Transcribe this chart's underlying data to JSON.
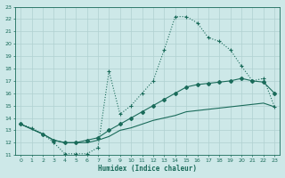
{
  "xlabel": "Humidex (Indice chaleur)",
  "bg_color": "#cde8e8",
  "grid_color": "#b0d0d0",
  "line_color": "#1a6b5a",
  "xlim": [
    -0.5,
    23.5
  ],
  "ylim": [
    11,
    23
  ],
  "xticks": [
    0,
    1,
    2,
    3,
    4,
    5,
    6,
    7,
    8,
    9,
    10,
    11,
    12,
    13,
    14,
    15,
    16,
    17,
    18,
    19,
    20,
    21,
    22,
    23
  ],
  "yticks": [
    11,
    12,
    13,
    14,
    15,
    16,
    17,
    18,
    19,
    20,
    21,
    22,
    23
  ],
  "curve1_x": [
    0,
    1,
    2,
    3,
    4,
    5,
    6,
    7,
    8,
    9,
    10,
    11,
    12,
    13,
    14,
    15,
    16,
    17,
    18,
    19,
    20,
    21,
    22,
    23
  ],
  "curve1_y": [
    13.5,
    13.2,
    12.7,
    12.0,
    11.1,
    11.1,
    11.1,
    11.6,
    17.8,
    14.3,
    15.0,
    16.0,
    17.0,
    19.5,
    22.2,
    22.2,
    21.7,
    20.5,
    20.2,
    19.5,
    18.2,
    17.0,
    17.2,
    14.9
  ],
  "curve2_x": [
    0,
    2,
    3,
    4,
    5,
    6,
    7,
    8,
    9,
    10,
    11,
    12,
    13,
    14,
    15,
    16,
    17,
    18,
    19,
    20,
    21,
    22,
    23
  ],
  "curve2_y": [
    13.5,
    12.7,
    12.2,
    12.0,
    12.0,
    12.2,
    12.4,
    13.0,
    13.5,
    14.0,
    14.5,
    15.0,
    15.5,
    16.0,
    16.5,
    16.7,
    16.8,
    16.9,
    17.0,
    17.2,
    17.0,
    16.9,
    16.0
  ],
  "curve3_x": [
    0,
    2,
    3,
    4,
    5,
    6,
    7,
    8,
    9,
    10,
    11,
    12,
    13,
    14,
    15,
    16,
    17,
    18,
    19,
    20,
    21,
    22,
    23
  ],
  "curve3_y": [
    13.5,
    12.7,
    12.2,
    12.0,
    12.0,
    12.0,
    12.2,
    12.5,
    13.0,
    13.2,
    13.5,
    13.8,
    14.0,
    14.2,
    14.5,
    14.6,
    14.7,
    14.8,
    14.9,
    15.0,
    15.1,
    15.2,
    14.9
  ]
}
